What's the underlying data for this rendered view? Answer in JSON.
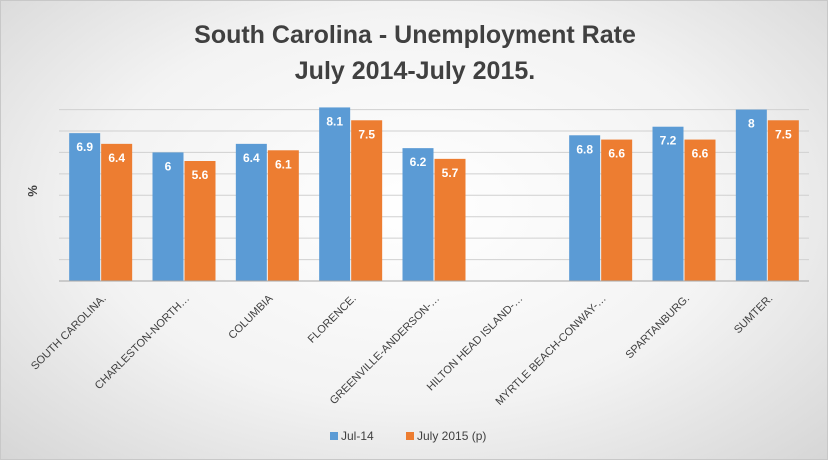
{
  "chart_data": {
    "type": "bar",
    "title": "South Carolina - Unemployment Rate",
    "subtitle": "July 2014-July 2015.",
    "xlabel": "",
    "ylabel": "%",
    "ylim": [
      0,
      8.4
    ],
    "grid": true,
    "legend_position": "bottom",
    "categories": [
      "SOUTH CAROLINA.",
      "CHARLESTON-NORTH…",
      "COLUMBIA",
      "FLORENCE.",
      "GREENVILLE-ANDERSON-…",
      "HILTON HEAD ISLAND-…",
      "MYRTLE BEACH-CONWAY-…",
      "SPARTANBURG.",
      "SUMTER."
    ],
    "series": [
      {
        "name": "Jul-14",
        "color": "#5b9bd5",
        "values": [
          6.9,
          6,
          6.4,
          8.1,
          6.2,
          null,
          6.8,
          7.2,
          8
        ]
      },
      {
        "name": "July 2015 (p)",
        "color": "#ed7d31",
        "values": [
          6.4,
          5.6,
          6.1,
          7.5,
          5.7,
          null,
          6.6,
          6.6,
          7.5
        ]
      }
    ]
  }
}
